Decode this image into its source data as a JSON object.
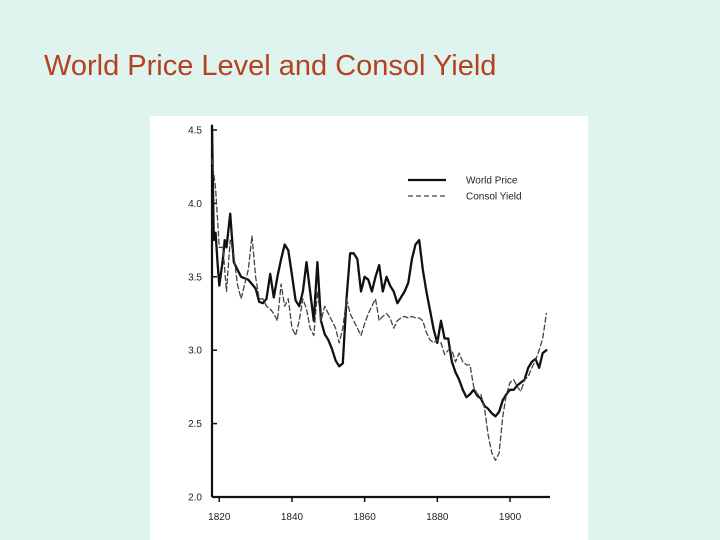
{
  "slide": {
    "title": "World Price Level and Consol Yield"
  },
  "chart_data": {
    "type": "line",
    "title": "World Price Level and Consol Yield",
    "xlabel": "",
    "ylabel": "",
    "xlim": [
      1818,
      1911
    ],
    "ylim": [
      2.0,
      4.5
    ],
    "x_ticks": [
      1820,
      1840,
      1860,
      1880,
      1900
    ],
    "x_tick_labels": [
      "1820",
      "1840",
      "1860",
      "1880",
      "1900"
    ],
    "y_ticks": [
      2.0,
      2.5,
      3.0,
      3.5,
      4.0,
      4.5
    ],
    "y_tick_labels": [
      "2.0",
      "2.5",
      "3.0",
      "3.5",
      "4.0",
      "4.5"
    ],
    "grid": false,
    "legend_position": "top-right",
    "series": [
      {
        "name": "World Price",
        "style": "solid",
        "color": "#111111",
        "x": [
          1818,
          1818.5,
          1819,
          1819.5,
          1820,
          1821,
          1821.5,
          1822,
          1823,
          1824,
          1825,
          1826,
          1827,
          1828,
          1829,
          1830,
          1831,
          1832,
          1833,
          1834,
          1835,
          1836,
          1837,
          1838,
          1839,
          1840,
          1841,
          1842,
          1843,
          1844,
          1845,
          1846,
          1847,
          1848,
          1849,
          1850,
          1851,
          1852,
          1853,
          1854,
          1855,
          1856,
          1857,
          1858,
          1859,
          1860,
          1861,
          1862,
          1863,
          1864,
          1865,
          1866,
          1867,
          1868,
          1869,
          1870,
          1871,
          1872,
          1873,
          1874,
          1875,
          1876,
          1877,
          1878,
          1879,
          1880,
          1881,
          1882,
          1883,
          1884,
          1885,
          1886,
          1887,
          1888,
          1889,
          1890,
          1891,
          1892,
          1893,
          1894,
          1895,
          1896,
          1897,
          1898,
          1899,
          1900,
          1901,
          1902,
          1903,
          1904,
          1905,
          1906,
          1907,
          1908,
          1909,
          1910
        ],
        "values": [
          4.53,
          3.75,
          3.8,
          3.6,
          3.44,
          3.62,
          3.75,
          3.7,
          3.93,
          3.6,
          3.55,
          3.5,
          3.49,
          3.48,
          3.45,
          3.42,
          3.33,
          3.32,
          3.35,
          3.52,
          3.36,
          3.5,
          3.62,
          3.72,
          3.68,
          3.51,
          3.34,
          3.3,
          3.4,
          3.6,
          3.4,
          3.2,
          3.6,
          3.2,
          3.11,
          3.07,
          3.01,
          2.93,
          2.89,
          2.91,
          3.35,
          3.66,
          3.66,
          3.62,
          3.4,
          3.5,
          3.48,
          3.4,
          3.5,
          3.58,
          3.4,
          3.5,
          3.44,
          3.4,
          3.32,
          3.36,
          3.4,
          3.46,
          3.62,
          3.72,
          3.75,
          3.55,
          3.4,
          3.27,
          3.14,
          3.05,
          3.2,
          3.08,
          3.08,
          2.92,
          2.85,
          2.8,
          2.73,
          2.68,
          2.7,
          2.73,
          2.69,
          2.67,
          2.62,
          2.6,
          2.57,
          2.55,
          2.58,
          2.66,
          2.7,
          2.73,
          2.73,
          2.76,
          2.78,
          2.8,
          2.88,
          2.92,
          2.94,
          2.88,
          2.98,
          3.0
        ]
      },
      {
        "name": "Consol Yield",
        "style": "dashed",
        "color": "#444444",
        "x": [
          1818,
          1819,
          1820,
          1821,
          1822,
          1823,
          1824,
          1825,
          1826,
          1827,
          1828,
          1829,
          1830,
          1831,
          1832,
          1833,
          1834,
          1835,
          1836,
          1837,
          1838,
          1839,
          1840,
          1841,
          1842,
          1843,
          1844,
          1845,
          1846,
          1847,
          1848,
          1849,
          1850,
          1851,
          1852,
          1853,
          1854,
          1855,
          1856,
          1857,
          1858,
          1859,
          1860,
          1861,
          1862,
          1863,
          1864,
          1865,
          1866,
          1867,
          1868,
          1869,
          1870,
          1871,
          1872,
          1873,
          1874,
          1875,
          1876,
          1877,
          1878,
          1879,
          1880,
          1881,
          1882,
          1883,
          1884,
          1885,
          1886,
          1887,
          1888,
          1889,
          1890,
          1891,
          1892,
          1893,
          1894,
          1895,
          1896,
          1897,
          1898,
          1899,
          1900,
          1901,
          1902,
          1903,
          1904,
          1905,
          1906,
          1907,
          1908,
          1909,
          1910
        ],
        "values": [
          4.3,
          4.1,
          3.7,
          3.7,
          3.4,
          3.75,
          3.65,
          3.45,
          3.35,
          3.45,
          3.55,
          3.78,
          3.5,
          3.35,
          3.35,
          3.3,
          3.28,
          3.25,
          3.2,
          3.45,
          3.3,
          3.35,
          3.15,
          3.1,
          3.2,
          3.35,
          3.28,
          3.15,
          3.1,
          3.4,
          3.2,
          3.3,
          3.25,
          3.2,
          3.15,
          3.05,
          3.15,
          3.35,
          3.25,
          3.2,
          3.15,
          3.1,
          3.18,
          3.25,
          3.3,
          3.35,
          3.2,
          3.23,
          3.25,
          3.22,
          3.15,
          3.2,
          3.22,
          3.23,
          3.22,
          3.23,
          3.22,
          3.22,
          3.2,
          3.12,
          3.07,
          3.05,
          3.07,
          3.05,
          2.97,
          3.0,
          3.0,
          2.92,
          2.98,
          2.92,
          2.9,
          2.9,
          2.75,
          2.7,
          2.7,
          2.6,
          2.42,
          2.3,
          2.25,
          2.3,
          2.55,
          2.7,
          2.78,
          2.8,
          2.75,
          2.72,
          2.8,
          2.82,
          2.88,
          2.93,
          3.0,
          3.08,
          3.25
        ]
      }
    ]
  }
}
